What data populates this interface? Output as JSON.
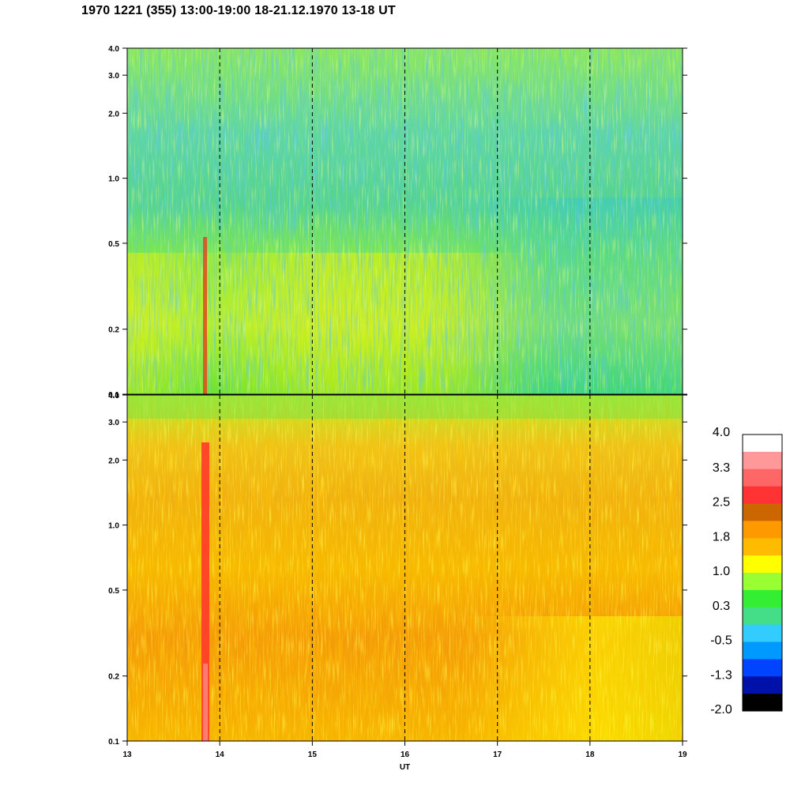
{
  "title": "1970 1221 (355) 13:00-19:00 18-21.12.1970  13-18 UT",
  "chart_data": [
    {
      "type": "heatmap",
      "panel": "top",
      "xlim": [
        13,
        19
      ],
      "ylim": [
        0.1,
        4.0
      ],
      "yscale": "log",
      "ytick_labels": [
        "0.1",
        "0.2",
        "0.5",
        "1.0",
        "2.0",
        "3.0",
        "4.0"
      ],
      "ytick_values": [
        0.1,
        0.2,
        0.5,
        1.0,
        2.0,
        3.0,
        4.0
      ],
      "vertical_dashed_lines": [
        14,
        15,
        16,
        17,
        18
      ],
      "dominant_levels": "green to cyan (0.3 to -0.5), yellow patches (1.0) at low frequency"
    },
    {
      "type": "heatmap",
      "panel": "bottom",
      "xlim": [
        13,
        19
      ],
      "ylim": [
        0.1,
        4.0
      ],
      "yscale": "log",
      "ytick_labels": [
        "0.1",
        "0.2",
        "0.5",
        "1.0",
        "2.0",
        "3.0",
        "4.0"
      ],
      "ytick_values": [
        0.1,
        0.2,
        0.5,
        1.0,
        2.0,
        3.0,
        4.0
      ],
      "xtick_labels": [
        "13",
        "14",
        "15",
        "16",
        "17",
        "18",
        "19"
      ],
      "xtick_values": [
        13,
        14,
        15,
        16,
        17,
        18,
        19
      ],
      "xlabel": "UT",
      "vertical_dashed_lines": [
        14,
        15,
        16,
        17,
        18
      ],
      "dominant_levels": "orange to yellow (1.8 to 1.0), green at high frequency, red band near 13.85 UT"
    }
  ],
  "colorbar": {
    "labels": [
      "4.0",
      "3.3",
      "2.5",
      "1.8",
      "1.0",
      "0.3",
      "-0.5",
      "-1.3",
      "-2.0"
    ],
    "colors_top_to_bottom": [
      "#ffffff",
      "#ff9999",
      "#ff6666",
      "#ff3333",
      "#cc6600",
      "#ff9900",
      "#ffbb00",
      "#ffff00",
      "#99ff33",
      "#33ee33",
      "#44dd88",
      "#33ccff",
      "#0099ff",
      "#0044ff",
      "#0011aa",
      "#000000"
    ]
  }
}
